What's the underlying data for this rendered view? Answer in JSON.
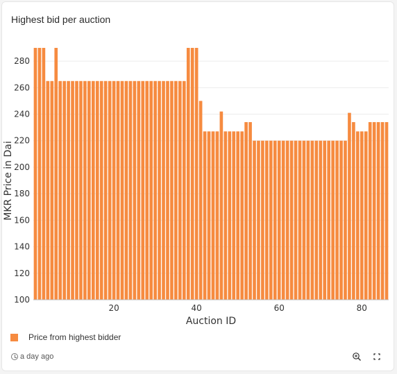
{
  "card": {
    "title": "Highest bid per auction",
    "timestamp": "a day ago",
    "icons": {
      "clock": "history-clock-icon",
      "zoom": "zoom-in-icon",
      "expand": "expand-icon"
    }
  },
  "chart_data": {
    "type": "bar",
    "xlabel": "Auction ID",
    "ylabel": "MKR Price in Dai",
    "ylim": [
      100,
      290
    ],
    "xlim": [
      0.5,
      86.5
    ],
    "yticks": [
      100,
      120,
      140,
      160,
      180,
      200,
      220,
      240,
      260,
      280
    ],
    "xticks": [
      20,
      40,
      60,
      80
    ],
    "grid": true,
    "legend_position": "bottom-left",
    "color": "#f68b40",
    "series": [
      {
        "name": "Price from highest bidder",
        "x": [
          1,
          2,
          3,
          4,
          5,
          6,
          7,
          8,
          9,
          10,
          11,
          12,
          13,
          14,
          15,
          16,
          17,
          18,
          19,
          20,
          21,
          22,
          23,
          24,
          25,
          26,
          27,
          28,
          29,
          30,
          31,
          32,
          33,
          34,
          35,
          36,
          37,
          38,
          39,
          40,
          41,
          42,
          43,
          44,
          45,
          46,
          47,
          48,
          49,
          50,
          51,
          52,
          53,
          54,
          55,
          56,
          57,
          58,
          59,
          60,
          61,
          62,
          63,
          64,
          65,
          66,
          67,
          68,
          69,
          70,
          71,
          72,
          73,
          74,
          75,
          76,
          77,
          78,
          79,
          80,
          81,
          82,
          83,
          84,
          85,
          86
        ],
        "values": [
          290,
          290,
          290,
          265,
          265,
          290,
          265,
          265,
          265,
          265,
          265,
          265,
          265,
          265,
          265,
          265,
          265,
          265,
          265,
          265,
          265,
          265,
          265,
          265,
          265,
          265,
          265,
          265,
          265,
          265,
          265,
          265,
          265,
          265,
          265,
          265,
          265,
          290,
          290,
          290,
          250,
          227,
          227,
          227,
          227,
          242,
          227,
          227,
          227,
          227,
          227,
          234,
          234,
          220,
          220,
          220,
          220,
          220,
          220,
          220,
          220,
          220,
          220,
          220,
          220,
          220,
          220,
          220,
          220,
          220,
          220,
          220,
          220,
          220,
          220,
          220,
          241,
          234,
          227,
          227,
          227,
          234,
          234,
          234,
          234,
          234
        ]
      }
    ]
  }
}
